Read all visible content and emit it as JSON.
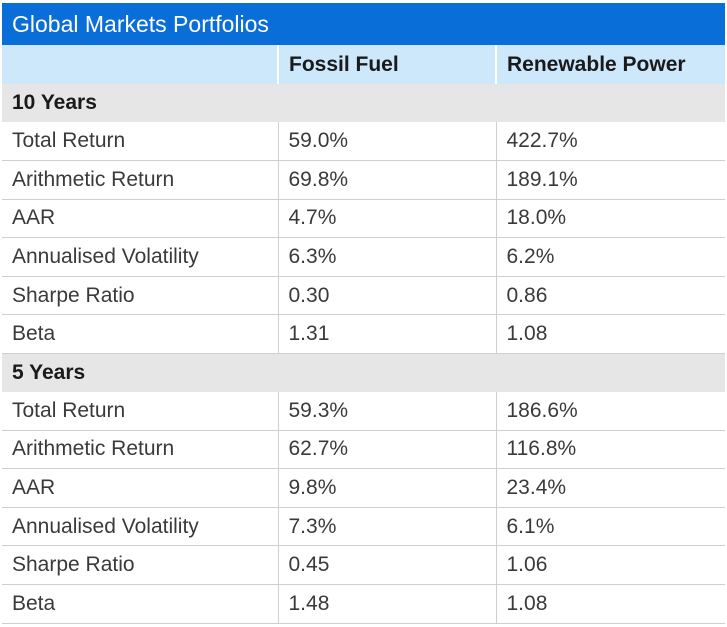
{
  "title": "Global Markets Portfolios",
  "columns": [
    "",
    "Fossil Fuel",
    "Renewable Power"
  ],
  "sections": [
    {
      "label": "10 Years",
      "rows": [
        {
          "metric": "Total Return",
          "fossil": "59.0%",
          "renewable": "422.7%"
        },
        {
          "metric": "Arithmetic Return",
          "fossil": "69.8%",
          "renewable": "189.1%"
        },
        {
          "metric": "AAR",
          "fossil": "4.7%",
          "renewable": "18.0%"
        },
        {
          "metric": "Annualised Volatility",
          "fossil": "6.3%",
          "renewable": "6.2%"
        },
        {
          "metric": "Sharpe Ratio",
          "fossil": "0.30",
          "renewable": "0.86"
        },
        {
          "metric": "Beta",
          "fossil": "1.31",
          "renewable": "1.08"
        }
      ]
    },
    {
      "label": "5 Years",
      "rows": [
        {
          "metric": "Total Return",
          "fossil": "59.3%",
          "renewable": "186.6%"
        },
        {
          "metric": "Arithmetic Return",
          "fossil": "62.7%",
          "renewable": "116.8%"
        },
        {
          "metric": "AAR",
          "fossil": "9.8%",
          "renewable": "23.4%"
        },
        {
          "metric": "Annualised Volatility",
          "fossil": "7.3%",
          "renewable": "6.1%"
        },
        {
          "metric": "Sharpe Ratio",
          "fossil": "0.45",
          "renewable": "1.06"
        },
        {
          "metric": "Beta",
          "fossil": "1.48",
          "renewable": "1.08"
        }
      ]
    }
  ],
  "colors": {
    "title_bg": "#0a6ed8",
    "header_bg": "#cde7fb",
    "section_bg": "#e6e6e6"
  }
}
